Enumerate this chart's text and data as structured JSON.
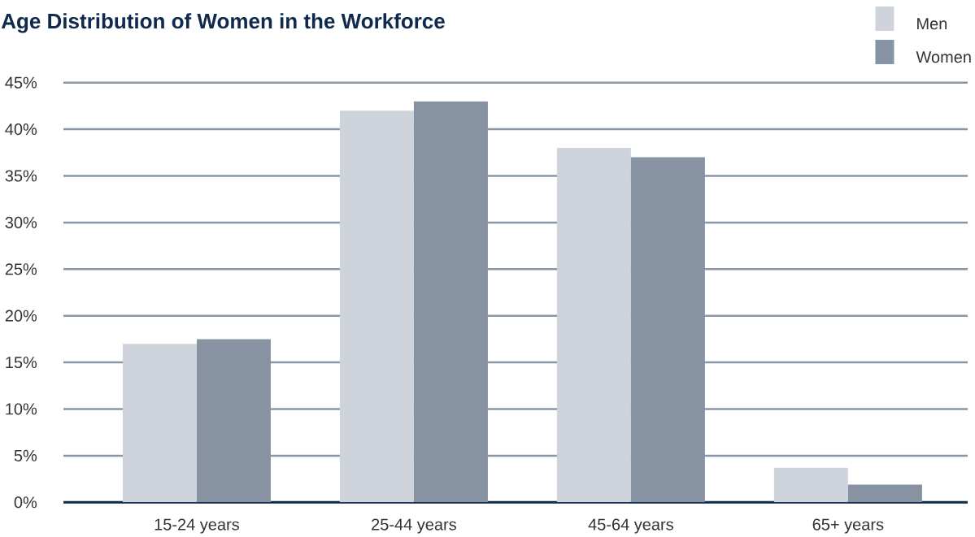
{
  "chart_data": {
    "type": "bar",
    "title": "Age Distribution of Women in the Workforce",
    "categories": [
      "15-24 years",
      "25-44 years",
      "45-64 years",
      "65+ years"
    ],
    "series": [
      {
        "name": "Men",
        "color": "#cfd4dc",
        "values": [
          17,
          42,
          38,
          3.7
        ]
      },
      {
        "name": "Women",
        "color": "#8793a3",
        "values": [
          17.5,
          43,
          37,
          1.9
        ]
      }
    ],
    "ylim": [
      0,
      45
    ],
    "yticks": [
      {
        "value": 0,
        "label": "0%"
      },
      {
        "value": 5,
        "label": "5%"
      },
      {
        "value": 10,
        "label": "10%"
      },
      {
        "value": 15,
        "label": "15%"
      },
      {
        "value": 20,
        "label": "20%"
      },
      {
        "value": 25,
        "label": "25%"
      },
      {
        "value": 30,
        "label": "30%"
      },
      {
        "value": 35,
        "label": "35%"
      },
      {
        "value": 40,
        "label": "40%"
      },
      {
        "value": 45,
        "label": "45%"
      }
    ],
    "grid": "y",
    "legend": "top right"
  }
}
